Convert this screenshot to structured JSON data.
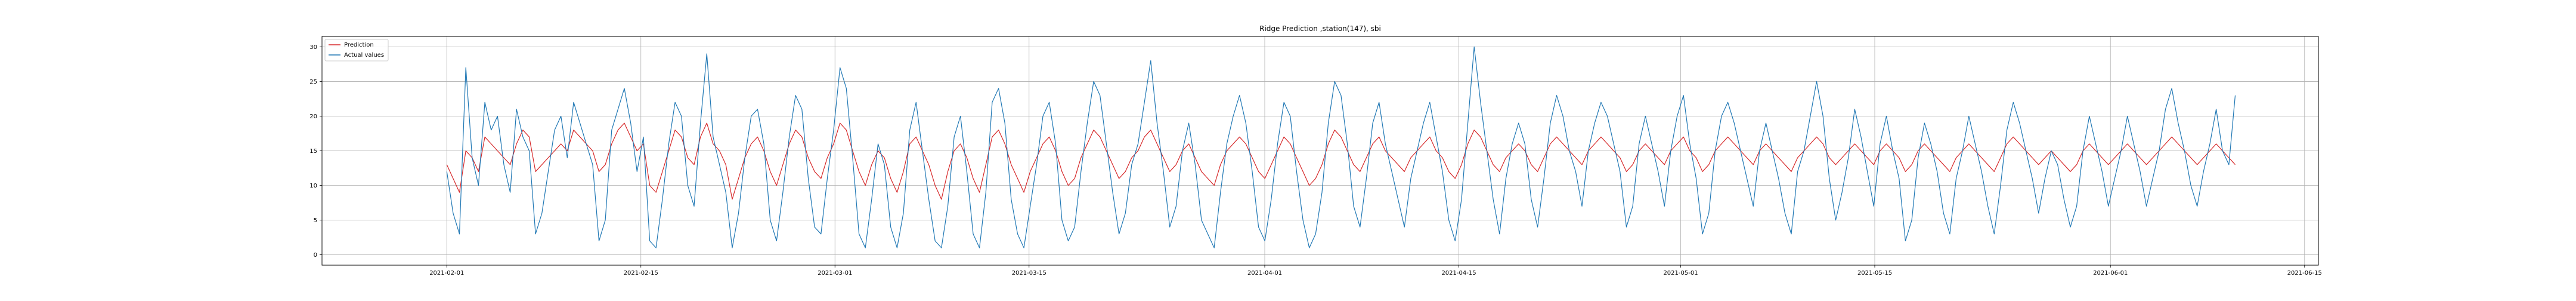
{
  "chart_data": {
    "type": "line",
    "title": "Ridge Prediction ,station(147), sbi",
    "xlabel": "",
    "ylabel": "",
    "x_range": [
      "2021-01-23",
      "2021-06-16"
    ],
    "ylim": [
      -1.5,
      31.5
    ],
    "x_ticks": [
      "2021-02-01",
      "2021-02-15",
      "2021-03-01",
      "2021-03-15",
      "2021-04-01",
      "2021-04-15",
      "2021-05-01",
      "2021-05-15",
      "2021-06-01",
      "2021-06-15"
    ],
    "y_ticks": [
      0,
      5,
      10,
      15,
      20,
      25,
      30
    ],
    "grid": true,
    "legend_position": "top-left",
    "data_start": "2021-02-01",
    "data_end": "2021-06-10",
    "series": [
      {
        "name": "Prediction",
        "color": "#d62728",
        "values": [
          13,
          11,
          9,
          15,
          14,
          12,
          17,
          16,
          15,
          14,
          13,
          16,
          18,
          17,
          12,
          13,
          14,
          15,
          16,
          15,
          18,
          17,
          16,
          15,
          12,
          13,
          16,
          18,
          19,
          17,
          15,
          16,
          10,
          9,
          12,
          15,
          18,
          17,
          14,
          13,
          17,
          19,
          16,
          15,
          13,
          8,
          11,
          14,
          16,
          17,
          15,
          12,
          10,
          13,
          16,
          18,
          17,
          14,
          12,
          11,
          14,
          16,
          19,
          18,
          15,
          12,
          10,
          13,
          15,
          14,
          11,
          9,
          12,
          16,
          17,
          15,
          13,
          10,
          8,
          12,
          15,
          16,
          14,
          11,
          9,
          13,
          17,
          18,
          16,
          13,
          11,
          9,
          12,
          14,
          16,
          17,
          15,
          12,
          10,
          11,
          14,
          16,
          18,
          17,
          15,
          13,
          11,
          12,
          14,
          15,
          17,
          18,
          16,
          14,
          12,
          13,
          15,
          16,
          14,
          12,
          11,
          10,
          13,
          15,
          16,
          17,
          16,
          14,
          12,
          11,
          13,
          15,
          17,
          16,
          14,
          12,
          10,
          11,
          13,
          16,
          18,
          17,
          15,
          13,
          12,
          14,
          16,
          17,
          15,
          14,
          13,
          12,
          14,
          15,
          16,
          17,
          15,
          14,
          12,
          11,
          13,
          16,
          18,
          17,
          15,
          13,
          12,
          14,
          15,
          16,
          15,
          13,
          12,
          14,
          16,
          17,
          16,
          15,
          14,
          13,
          15,
          16,
          17,
          16,
          15,
          14,
          12,
          13,
          15,
          16,
          15,
          14,
          13,
          15,
          16,
          17,
          15,
          14,
          12,
          13,
          15,
          16,
          17,
          16,
          15,
          14,
          13,
          15,
          16,
          15,
          14,
          13,
          12,
          14,
          15,
          16,
          17,
          16,
          14,
          13,
          14,
          15,
          16,
          15,
          14,
          13,
          15,
          16,
          15,
          14,
          12,
          13,
          15,
          16,
          15,
          14,
          13,
          12,
          14,
          15,
          16,
          15,
          14,
          13,
          12,
          14,
          16,
          17,
          16,
          15,
          14,
          13,
          14,
          15,
          14,
          13,
          12,
          13,
          15,
          16,
          15,
          14,
          13,
          14,
          15,
          16,
          15,
          14,
          13,
          14,
          15,
          16,
          17,
          16,
          15,
          14,
          13,
          14,
          15,
          16,
          15,
          14,
          13
        ]
      },
      {
        "name": "Actual values",
        "color": "#1f77b4",
        "values": [
          12,
          6,
          3,
          27,
          14,
          10,
          22,
          18,
          20,
          13,
          9,
          21,
          17,
          15,
          3,
          6,
          12,
          18,
          20,
          14,
          22,
          19,
          16,
          13,
          2,
          5,
          18,
          21,
          24,
          19,
          12,
          17,
          2,
          1,
          8,
          16,
          22,
          20,
          10,
          7,
          19,
          29,
          17,
          13,
          9,
          1,
          6,
          14,
          20,
          21,
          16,
          5,
          2,
          9,
          17,
          23,
          21,
          11,
          4,
          3,
          11,
          18,
          27,
          24,
          14,
          3,
          1,
          8,
          16,
          13,
          4,
          1,
          6,
          18,
          22,
          15,
          8,
          2,
          1,
          7,
          17,
          20,
          12,
          3,
          1,
          9,
          22,
          24,
          19,
          8,
          3,
          1,
          7,
          13,
          20,
          22,
          16,
          5,
          2,
          4,
          12,
          19,
          25,
          23,
          16,
          9,
          3,
          6,
          13,
          16,
          22,
          28,
          19,
          12,
          4,
          7,
          15,
          19,
          13,
          5,
          3,
          1,
          9,
          16,
          20,
          23,
          19,
          12,
          4,
          2,
          8,
          16,
          22,
          20,
          12,
          5,
          1,
          3,
          9,
          19,
          25,
          23,
          16,
          7,
          4,
          11,
          19,
          22,
          16,
          12,
          8,
          4,
          11,
          15,
          19,
          22,
          17,
          12,
          5,
          2,
          8,
          19,
          30,
          22,
          15,
          8,
          3,
          11,
          16,
          19,
          16,
          8,
          4,
          11,
          19,
          23,
          20,
          15,
          12,
          7,
          15,
          19,
          22,
          20,
          16,
          12,
          4,
          7,
          16,
          20,
          16,
          12,
          7,
          15,
          20,
          23,
          16,
          11,
          3,
          6,
          15,
          20,
          22,
          19,
          15,
          11,
          7,
          15,
          19,
          15,
          11,
          6,
          3,
          12,
          15,
          20,
          25,
          20,
          11,
          5,
          9,
          14,
          21,
          17,
          12,
          7,
          16,
          20,
          15,
          11,
          2,
          5,
          14,
          19,
          16,
          12,
          6,
          3,
          11,
          15,
          20,
          16,
          12,
          7,
          3,
          10,
          18,
          22,
          19,
          15,
          11,
          6,
          11,
          15,
          13,
          8,
          4,
          7,
          15,
          20,
          16,
          12,
          7,
          11,
          15,
          20,
          16,
          12,
          7,
          11,
          15,
          21,
          24,
          19,
          15,
          10,
          7,
          12,
          16,
          21,
          15,
          13,
          23
        ]
      }
    ]
  }
}
